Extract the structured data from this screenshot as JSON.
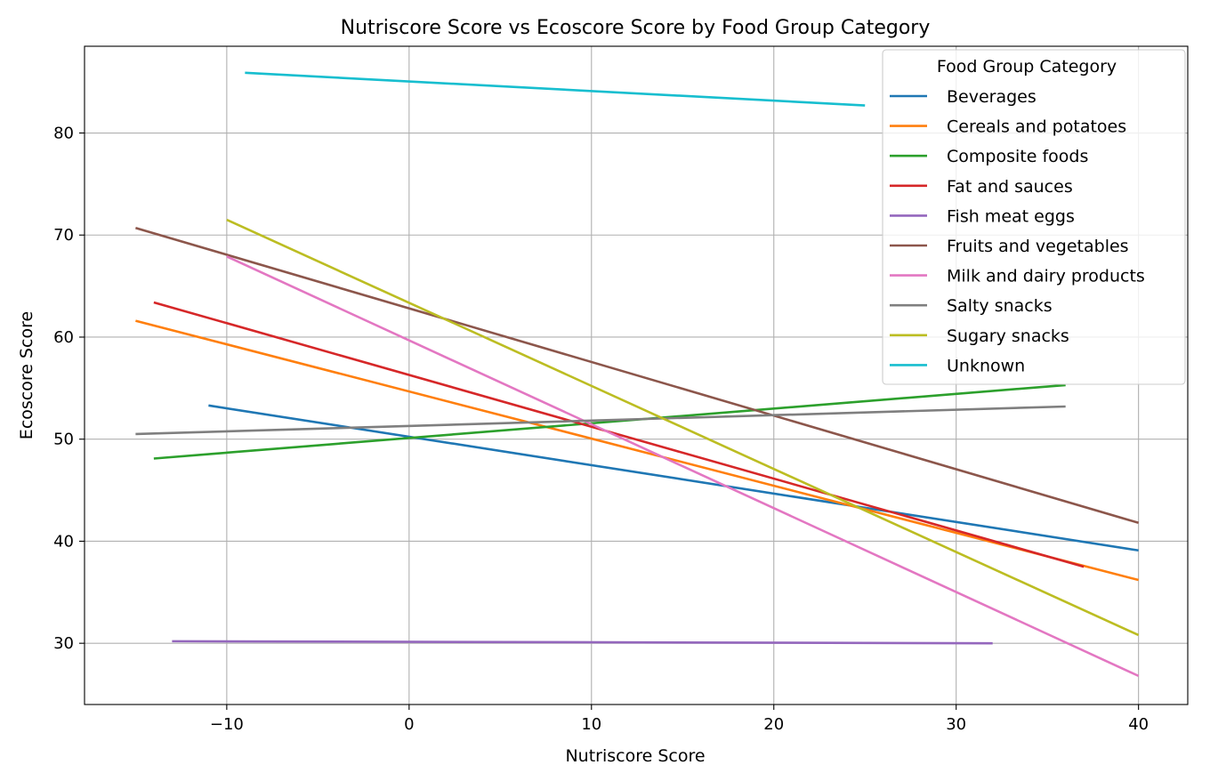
{
  "chart_data": {
    "type": "line",
    "title": "Nutriscore Score vs Ecoscore Score by Food Group Category",
    "xlabel": "Nutriscore Score",
    "ylabel": "Ecoscore Score",
    "xlim": [
      -17.8,
      42.7
    ],
    "ylim": [
      24.0,
      88.5
    ],
    "xticks": [
      -10,
      0,
      10,
      20,
      30,
      40
    ],
    "yticks": [
      30,
      40,
      50,
      60,
      70,
      80
    ],
    "xtick_labels": [
      "−10",
      "0",
      "10",
      "20",
      "30",
      "40"
    ],
    "ytick_labels": [
      "30",
      "40",
      "50",
      "60",
      "70",
      "80"
    ],
    "grid": true,
    "legend": {
      "title": "Food Group Category",
      "placement": "top-right"
    },
    "series": [
      {
        "name": "Beverages",
        "color": "#1f77b4",
        "x": [
          -11,
          40
        ],
        "y": [
          53.3,
          39.1
        ]
      },
      {
        "name": "Cereals and potatoes",
        "color": "#ff7f0e",
        "x": [
          -15,
          40
        ],
        "y": [
          61.6,
          36.2
        ]
      },
      {
        "name": "Composite foods",
        "color": "#2ca02c",
        "x": [
          -14,
          36
        ],
        "y": [
          48.1,
          55.3
        ]
      },
      {
        "name": "Fat and sauces",
        "color": "#d62728",
        "x": [
          -14,
          37
        ],
        "y": [
          63.4,
          37.5
        ]
      },
      {
        "name": "Fish meat eggs",
        "color": "#9467bd",
        "x": [
          -13,
          32
        ],
        "y": [
          30.2,
          30.0
        ]
      },
      {
        "name": "Fruits and vegetables",
        "color": "#8c564b",
        "x": [
          -15,
          40
        ],
        "y": [
          70.7,
          41.8
        ]
      },
      {
        "name": "Milk and dairy products",
        "color": "#e377c2",
        "x": [
          -10,
          40
        ],
        "y": [
          67.9,
          26.8
        ]
      },
      {
        "name": "Salty snacks",
        "color": "#7f7f7f",
        "x": [
          -15,
          36
        ],
        "y": [
          50.5,
          53.2
        ]
      },
      {
        "name": "Sugary snacks",
        "color": "#bcbd22",
        "x": [
          -10,
          40
        ],
        "y": [
          71.5,
          30.8
        ]
      },
      {
        "name": "Unknown",
        "color": "#17becf",
        "x": [
          -9,
          25
        ],
        "y": [
          85.9,
          82.7
        ]
      }
    ]
  }
}
